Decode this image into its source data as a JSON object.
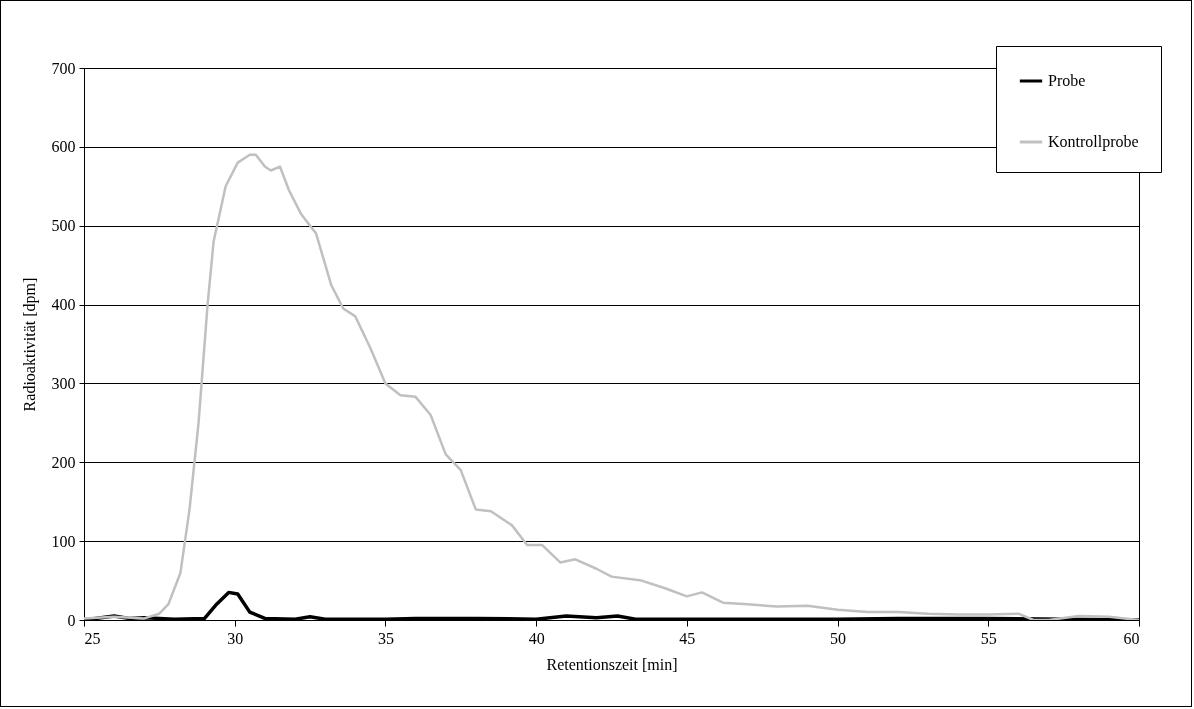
{
  "chart_data": {
    "type": "line",
    "xlabel": "Retentionszeit [min]",
    "ylabel": "Radioaktivität [dpm]",
    "xlim": [
      25,
      60
    ],
    "xticks": [
      25,
      30,
      35,
      40,
      45,
      50,
      55,
      60
    ],
    "ylim": [
      0,
      700
    ],
    "yticks": [
      0,
      100,
      200,
      300,
      400,
      500,
      600,
      700
    ],
    "grid": "y",
    "legend": "top right",
    "marker": "none",
    "line_style": "solid",
    "series": [
      {
        "name": "Probe",
        "color": "#000000",
        "x": [
          25,
          26,
          26.5,
          27,
          28,
          29,
          29.4,
          29.8,
          30.1,
          30.5,
          31,
          32,
          32.5,
          33,
          35,
          36,
          38,
          40,
          41,
          42,
          42.7,
          43.3,
          45,
          50,
          52,
          55,
          60
        ],
        "values": [
          0,
          5,
          2,
          3,
          1,
          2,
          20,
          35,
          33,
          10,
          2,
          1,
          4,
          1,
          1,
          2,
          2,
          1,
          5,
          3,
          5,
          1,
          1,
          1,
          2,
          2,
          0
        ]
      },
      {
        "name": "Kontrollprobe",
        "color": "#c0c0c0",
        "x": [
          25,
          26,
          27,
          27.5,
          27.8,
          28.2,
          28.5,
          28.8,
          29.1,
          29.3,
          29.7,
          30.1,
          30.5,
          30.7,
          31,
          31.2,
          31.5,
          31.8,
          32.2,
          32.7,
          33.2,
          33.6,
          34,
          34.5,
          35,
          35.5,
          36,
          36.5,
          37,
          37.5,
          38,
          38.5,
          39.2,
          39.7,
          40.2,
          40.8,
          41.3,
          42,
          42.5,
          43.5,
          44.3,
          45,
          45.5,
          46.2,
          47,
          48,
          49,
          50,
          51,
          52,
          53,
          54,
          55,
          56,
          56.5,
          57,
          58,
          59,
          60
        ],
        "values": [
          2,
          4,
          2,
          8,
          20,
          60,
          140,
          250,
          400,
          480,
          550,
          580,
          590,
          590,
          575,
          570,
          575,
          545,
          515,
          490,
          425,
          395,
          385,
          345,
          300,
          285,
          283,
          260,
          210,
          190,
          140,
          138,
          120,
          95,
          95,
          73,
          77,
          65,
          55,
          50,
          40,
          30,
          35,
          22,
          20,
          17,
          18,
          13,
          10,
          10,
          8,
          7,
          7,
          8,
          0,
          0,
          5,
          4,
          0
        ]
      }
    ]
  }
}
